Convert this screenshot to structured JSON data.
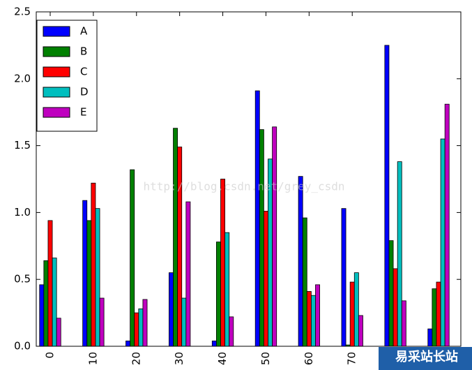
{
  "chart_data": {
    "type": "bar",
    "categories": [
      "0",
      "10",
      "20",
      "30",
      "40",
      "50",
      "60",
      "70",
      null,
      null
    ],
    "series": [
      {
        "name": "A",
        "color": "#0000ff",
        "values": [
          0.46,
          1.09,
          0.04,
          0.55,
          0.04,
          1.91,
          1.27,
          1.03,
          2.25,
          0.13
        ]
      },
      {
        "name": "B",
        "color": "#008000",
        "values": [
          0.64,
          0.94,
          1.32,
          1.63,
          0.78,
          1.62,
          0.96,
          0.01,
          0.79,
          0.43
        ]
      },
      {
        "name": "C",
        "color": "#ff0000",
        "values": [
          0.94,
          1.22,
          0.25,
          1.49,
          1.25,
          1.01,
          0.41,
          0.48,
          0.58,
          0.48
        ]
      },
      {
        "name": "D",
        "color": "#00bfbf",
        "values": [
          0.66,
          1.03,
          0.28,
          0.36,
          0.85,
          1.4,
          0.38,
          0.55,
          1.38,
          1.55
        ]
      },
      {
        "name": "E",
        "color": "#bf00bf",
        "values": [
          0.21,
          0.36,
          0.35,
          1.08,
          0.22,
          1.64,
          0.46,
          0.23,
          0.34,
          1.81
        ]
      }
    ],
    "ylim": [
      0,
      2.5
    ],
    "yticks": [
      {
        "value": 0,
        "label": "0.0"
      },
      0.5,
      {
        "value": 1,
        "label": "1.0"
      },
      1.5,
      {
        "value": 2,
        "label": "2.0"
      },
      2.5
    ],
    "legend": "upper left",
    "watermarks": [
      "http://blog.csdn.net/grey_csdn",
      "易采站长站"
    ]
  }
}
